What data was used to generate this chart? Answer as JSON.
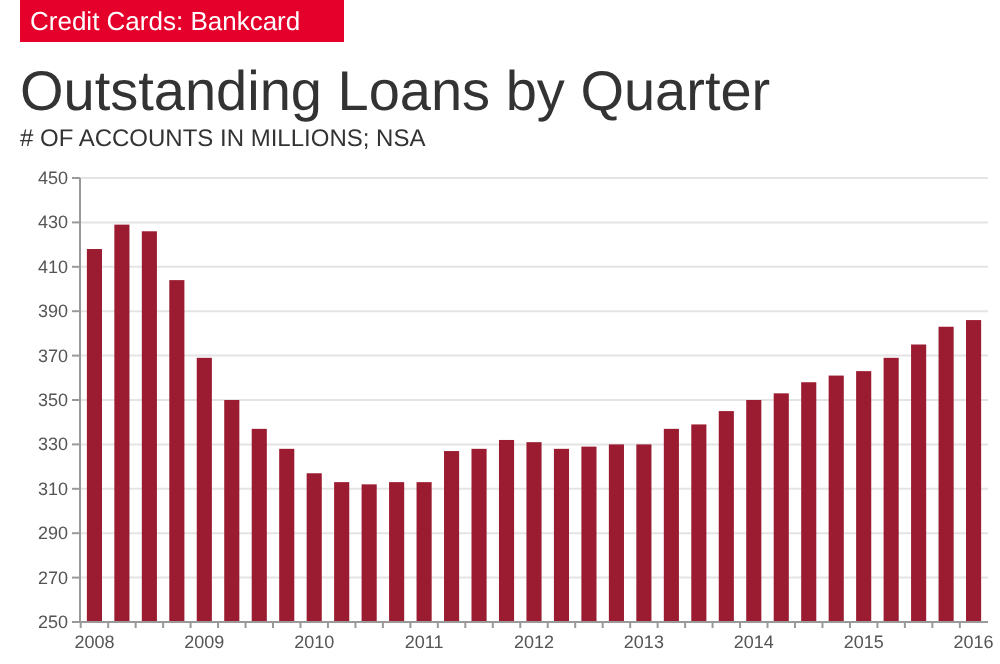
{
  "chart_data": {
    "type": "bar",
    "title": "Outstanding Loans by Quarter",
    "subtitle": "# OF ACCOUNTS IN MILLIONS; NSA",
    "annotations": [
      "Credit Cards: Bankcard"
    ],
    "categories": [
      "2008",
      null,
      null,
      null,
      "2009",
      null,
      null,
      null,
      "2010",
      null,
      null,
      null,
      "2011",
      null,
      null,
      null,
      "2012",
      null,
      null,
      null,
      "2013",
      null,
      null,
      null,
      "2014",
      null,
      null,
      null,
      "2015",
      null,
      null,
      null,
      "2016"
    ],
    "values": [
      418,
      429,
      426,
      404,
      369,
      350,
      337,
      328,
      317,
      313,
      312,
      313,
      313,
      327,
      328,
      332,
      331,
      328,
      329,
      330,
      330,
      337,
      339,
      345,
      350,
      353,
      358,
      361,
      363,
      369,
      375,
      383,
      386
    ],
    "color": "#9b1b30",
    "ylim": [
      250,
      450
    ],
    "yticks": [
      250,
      270,
      290,
      310,
      330,
      350,
      370,
      390,
      410,
      430,
      450
    ],
    "grid": "y"
  }
}
